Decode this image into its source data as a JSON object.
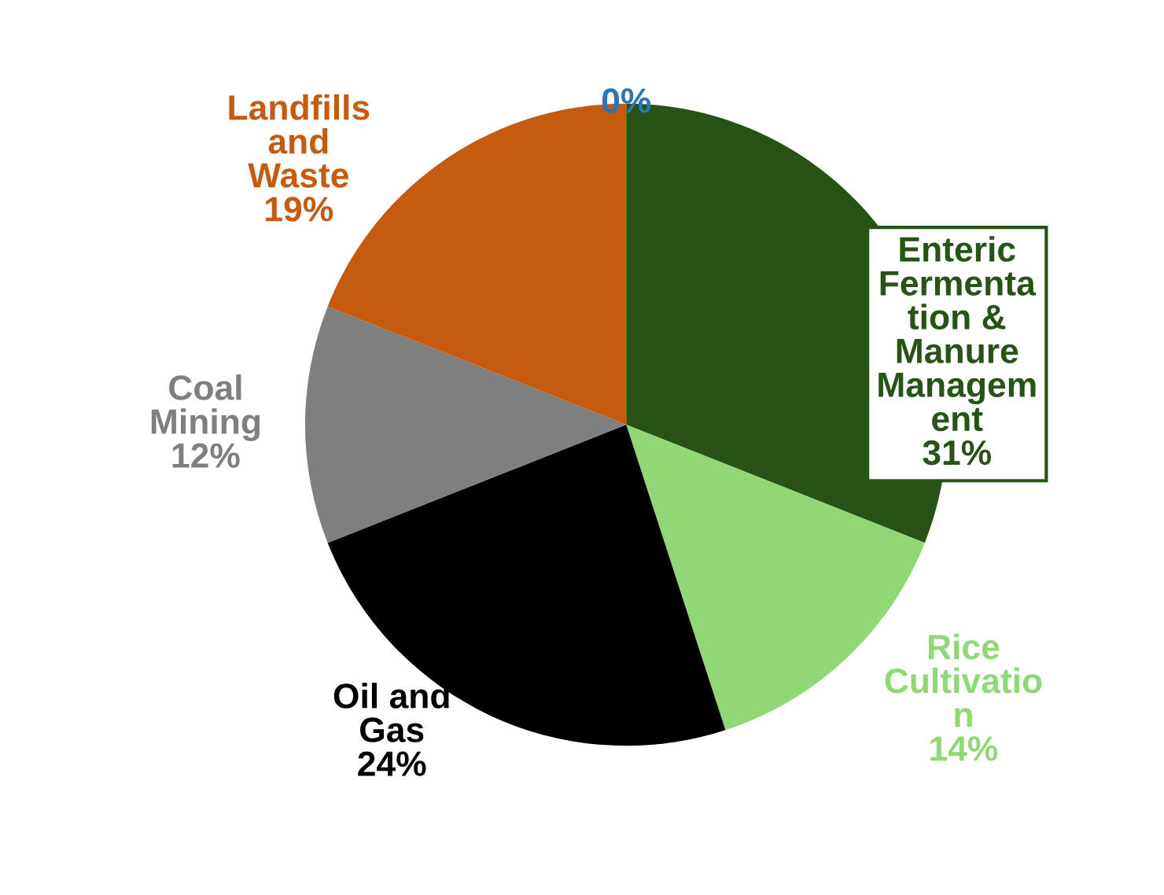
{
  "chart_data": {
    "type": "pie",
    "categories": [
      "Enteric\nFermenta\ntion &\nManure\nManagem\nent",
      "Rice\nCultivatio\nn",
      "Oil and\nGas",
      "Coal\nMining",
      "Landfills\nand\nWaste",
      null
    ],
    "values": [
      31,
      14,
      24,
      12,
      19,
      0
    ],
    "value_labels": [
      "31%",
      "14%",
      "24%",
      "12%",
      "19%",
      "0%"
    ],
    "colors": [
      "#275317",
      "#8fd875",
      "#000000",
      "#7f7f7f",
      "#c55a11",
      "#2e75b6"
    ]
  }
}
